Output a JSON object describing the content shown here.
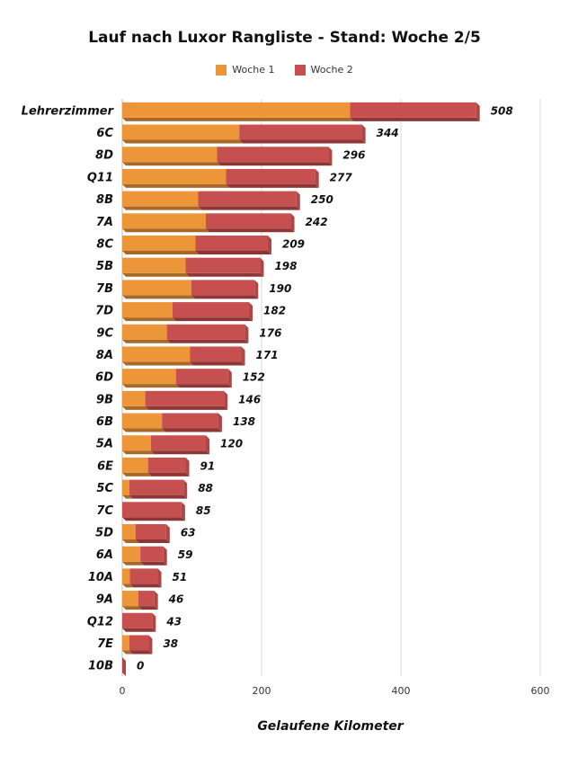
{
  "colors": {
    "woche1": "#ED9639",
    "woche2": "#C64F4F",
    "grid": "#D9D9D9"
  },
  "chart_data": {
    "type": "bar",
    "orientation": "horizontal",
    "stacked": true,
    "title": "Lauf nach Luxor Rangliste - Stand: Woche 2/5",
    "xlabel": "Gelaufene Kilometer",
    "ylabel": "",
    "xlim": [
      0,
      600
    ],
    "xticks": [
      0,
      200,
      400,
      600
    ],
    "grid": true,
    "legend_position": "top",
    "categories": [
      "Lehrerzimmer",
      "6C",
      "8D",
      "Q11",
      "8B",
      "7A",
      "8C",
      "5B",
      "7B",
      "7D",
      "9C",
      "8A",
      "6D",
      "9B",
      "6B",
      "5A",
      "6E",
      "5C",
      "7C",
      "5D",
      "6A",
      "10A",
      "9A",
      "Q12",
      "7E",
      "10B"
    ],
    "series": [
      {
        "name": "Woche 1",
        "values": [
          327,
          168,
          136,
          149,
          109,
          120,
          105,
          91,
          99,
          72,
          64,
          97,
          77,
          33,
          57,
          41,
          37,
          10,
          0,
          19,
          26,
          11,
          23,
          0,
          10,
          0
        ]
      },
      {
        "name": "Woche 2",
        "values": [
          181,
          176,
          160,
          128,
          141,
          122,
          104,
          107,
          91,
          110,
          112,
          74,
          75,
          113,
          81,
          79,
          54,
          78,
          85,
          44,
          33,
          40,
          23,
          43,
          28,
          0
        ]
      }
    ],
    "totals": [
      508,
      344,
      296,
      277,
      250,
      242,
      209,
      198,
      190,
      182,
      176,
      171,
      152,
      146,
      138,
      120,
      91,
      88,
      85,
      63,
      59,
      51,
      46,
      43,
      38,
      0
    ]
  }
}
